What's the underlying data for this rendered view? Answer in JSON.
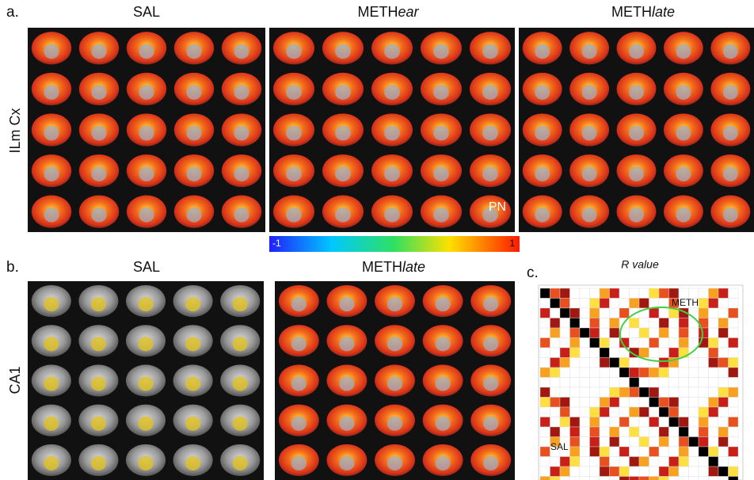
{
  "panel_a": {
    "label": "a.",
    "row_label": "ILm Cx",
    "columns": [
      {
        "prefix": "SAL"
      },
      {
        "prefix": "METH",
        "suffix": "ear"
      },
      {
        "prefix": "METH",
        "suffix": "late"
      }
    ],
    "annotation": "PN"
  },
  "colorbar": {
    "min_label": "-1",
    "max_label": "1"
  },
  "panel_b": {
    "label": "b.",
    "row_label": "CA1",
    "columns": [
      {
        "prefix": "SAL"
      },
      {
        "prefix": "METH",
        "suffix": "late"
      }
    ]
  },
  "panel_c": {
    "label": "c.",
    "title": "R value",
    "upper_label": "METH",
    "lower_label": "SAL"
  }
}
